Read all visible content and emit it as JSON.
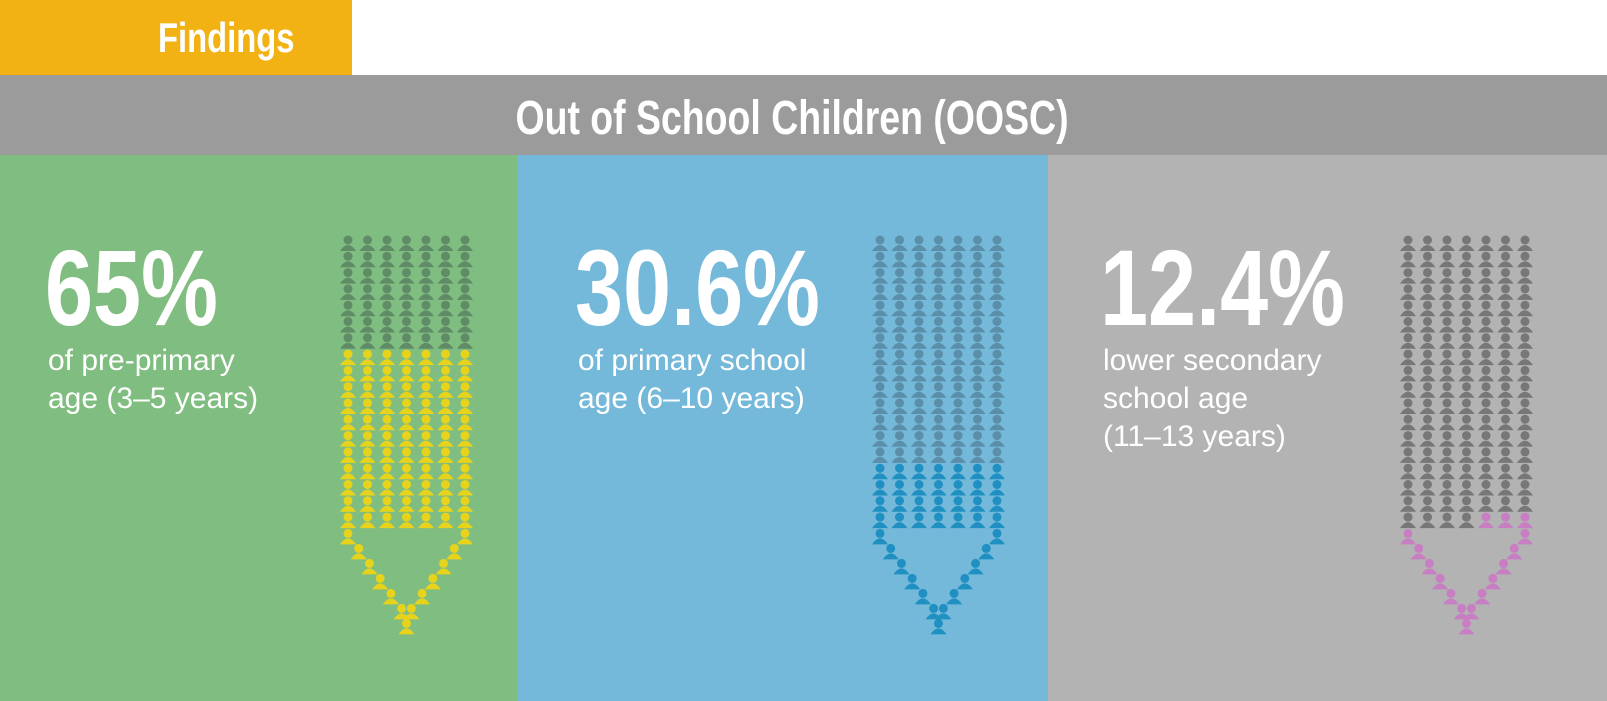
{
  "header": {
    "tab": "Findings",
    "title": "Out of School Children (OOSC)"
  },
  "panels": [
    {
      "percent": "65%",
      "lines": [
        "of pre-primary",
        "age (3–5 years)"
      ]
    },
    {
      "percent": "30.6%",
      "lines": [
        "of primary school",
        "age (6–10 years)"
      ]
    },
    {
      "percent": "12.4%",
      "lines": [
        "lower secondary",
        "school age",
        "(11–13 years)"
      ]
    }
  ]
}
